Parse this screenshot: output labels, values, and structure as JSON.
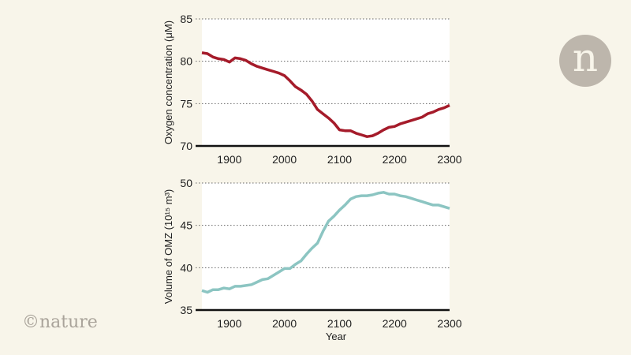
{
  "logo": {
    "letter": "n",
    "color": "#bdb6ac"
  },
  "copyright": "©nature",
  "chart_data": [
    {
      "type": "line",
      "xlabel": "",
      "ylabel": "Oxygen concentration (μM)",
      "xlim": [
        1850,
        2300
      ],
      "ylim": [
        70,
        85
      ],
      "xticks": [
        1900,
        2000,
        2100,
        2200,
        2300
      ],
      "yticks": [
        70,
        75,
        80,
        85
      ],
      "grid": "horizontal dotted",
      "color": "#a51b2a",
      "x": [
        1850,
        1860,
        1870,
        1880,
        1890,
        1900,
        1910,
        1920,
        1930,
        1940,
        1950,
        1960,
        1970,
        1980,
        1990,
        2000,
        2010,
        2020,
        2030,
        2040,
        2050,
        2060,
        2070,
        2080,
        2090,
        2100,
        2110,
        2120,
        2130,
        2140,
        2150,
        2160,
        2170,
        2180,
        2190,
        2200,
        2210,
        2220,
        2230,
        2240,
        2250,
        2260,
        2270,
        2280,
        2290,
        2300
      ],
      "y": [
        81.0,
        80.9,
        80.5,
        80.3,
        80.2,
        79.9,
        80.4,
        80.3,
        80.1,
        79.7,
        79.4,
        79.2,
        79.0,
        78.8,
        78.6,
        78.3,
        77.7,
        77.0,
        76.6,
        76.1,
        75.3,
        74.3,
        73.8,
        73.3,
        72.7,
        71.9,
        71.8,
        71.8,
        71.5,
        71.3,
        71.1,
        71.2,
        71.5,
        71.9,
        72.2,
        72.3,
        72.6,
        72.8,
        73.0,
        73.2,
        73.4,
        73.8,
        74.0,
        74.3,
        74.5,
        74.8
      ]
    },
    {
      "type": "line",
      "xlabel": "Year",
      "ylabel": "Volume of OMZ (10¹⁵ m³)",
      "xlim": [
        1850,
        2300
      ],
      "ylim": [
        35,
        50
      ],
      "xticks": [
        1900,
        2000,
        2100,
        2200,
        2300
      ],
      "yticks": [
        35,
        40,
        45,
        50
      ],
      "grid": "horizontal dotted",
      "color": "#8cc5c2",
      "x": [
        1850,
        1860,
        1870,
        1880,
        1890,
        1900,
        1910,
        1920,
        1930,
        1940,
        1950,
        1960,
        1970,
        1980,
        1990,
        2000,
        2010,
        2020,
        2030,
        2040,
        2050,
        2060,
        2070,
        2080,
        2090,
        2100,
        2110,
        2120,
        2130,
        2140,
        2150,
        2160,
        2170,
        2180,
        2190,
        2200,
        2210,
        2220,
        2230,
        2240,
        2250,
        2260,
        2270,
        2280,
        2290,
        2300
      ],
      "y": [
        37.3,
        37.1,
        37.4,
        37.4,
        37.6,
        37.5,
        37.8,
        37.8,
        37.9,
        38.0,
        38.3,
        38.6,
        38.7,
        39.1,
        39.5,
        39.9,
        39.9,
        40.4,
        40.8,
        41.6,
        42.3,
        42.9,
        44.3,
        45.5,
        46.1,
        46.8,
        47.4,
        48.1,
        48.4,
        48.5,
        48.5,
        48.6,
        48.8,
        48.9,
        48.7,
        48.7,
        48.5,
        48.4,
        48.2,
        48.0,
        47.8,
        47.6,
        47.4,
        47.4,
        47.2,
        47.0
      ]
    }
  ]
}
